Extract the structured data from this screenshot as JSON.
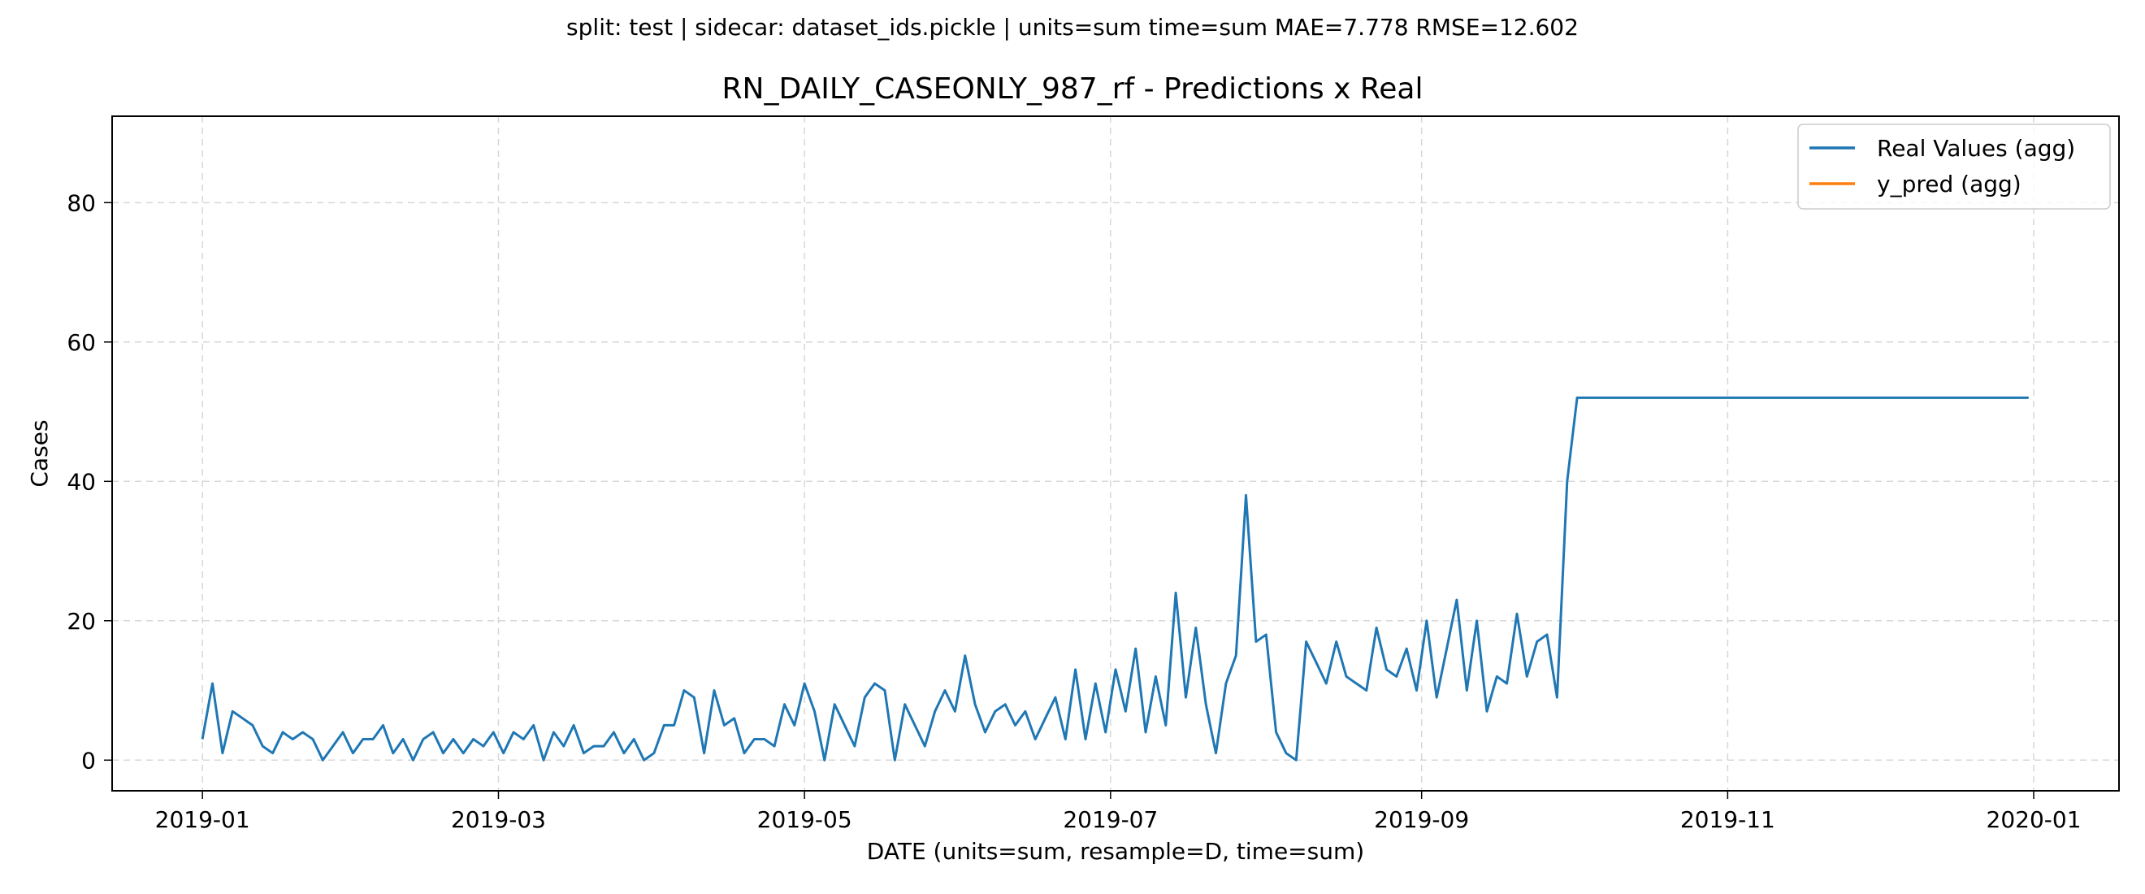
{
  "suptitle": "split: test | sidecar: dataset_ids.pickle | units=sum  time=sum  MAE=7.778  RMSE=12.602",
  "chart_data": {
    "type": "line",
    "title": "RN_DAILY_CASEONLY_987_rf - Predictions x Real",
    "xlabel": "DATE (units=sum, resample=D, time=sum)",
    "ylabel": "Cases",
    "xlim": [
      "2018-12-14",
      "2020-01-18"
    ],
    "ylim": [
      -4.4,
      92.4
    ],
    "x_ticks": [
      "2019-01-01",
      "2019-03-01",
      "2019-05-01",
      "2019-07-01",
      "2019-09-01",
      "2019-11-01",
      "2020-01-01"
    ],
    "x_tick_labels": [
      "2019-01",
      "2019-03",
      "2019-05",
      "2019-07",
      "2019-09",
      "2019-11",
      "2020-01"
    ],
    "y_ticks": [
      0,
      20,
      40,
      60,
      80
    ],
    "y_tick_labels": [
      "0",
      "20",
      "40",
      "60",
      "80"
    ],
    "grid": true,
    "legend_position": "top-right",
    "start_date": "2019-01-01",
    "end_date": "2019-12-31",
    "series": [
      {
        "name": "Real Values (agg)",
        "color": "#1f77b4",
        "keypoints": [
          [
            "2019-01-01",
            3
          ],
          [
            "2019-01-03",
            11
          ],
          [
            "2019-01-05",
            1
          ],
          [
            "2019-01-07",
            7
          ],
          [
            "2019-01-09",
            6
          ],
          [
            "2019-01-11",
            5
          ],
          [
            "2019-01-13",
            2
          ],
          [
            "2019-01-15",
            1
          ],
          [
            "2019-01-17",
            4
          ],
          [
            "2019-01-19",
            3
          ],
          [
            "2019-01-21",
            4
          ],
          [
            "2019-01-23",
            3
          ],
          [
            "2019-01-25",
            0
          ],
          [
            "2019-01-27",
            2
          ],
          [
            "2019-01-29",
            4
          ],
          [
            "2019-01-31",
            1
          ],
          [
            "2019-02-02",
            3
          ],
          [
            "2019-02-04",
            3
          ],
          [
            "2019-02-06",
            5
          ],
          [
            "2019-02-08",
            1
          ],
          [
            "2019-02-10",
            3
          ],
          [
            "2019-02-12",
            0
          ],
          [
            "2019-02-14",
            3
          ],
          [
            "2019-02-16",
            4
          ],
          [
            "2019-02-18",
            1
          ],
          [
            "2019-02-20",
            3
          ],
          [
            "2019-02-22",
            1
          ],
          [
            "2019-02-24",
            3
          ],
          [
            "2019-02-26",
            2
          ],
          [
            "2019-02-28",
            4
          ],
          [
            "2019-03-02",
            1
          ],
          [
            "2019-03-04",
            4
          ],
          [
            "2019-03-06",
            3
          ],
          [
            "2019-03-08",
            5
          ],
          [
            "2019-03-10",
            0
          ],
          [
            "2019-03-12",
            4
          ],
          [
            "2019-03-14",
            2
          ],
          [
            "2019-03-16",
            5
          ],
          [
            "2019-03-18",
            1
          ],
          [
            "2019-03-20",
            2
          ],
          [
            "2019-03-22",
            2
          ],
          [
            "2019-03-24",
            4
          ],
          [
            "2019-03-26",
            1
          ],
          [
            "2019-03-28",
            3
          ],
          [
            "2019-03-30",
            0
          ],
          [
            "2019-04-01",
            1
          ],
          [
            "2019-04-03",
            5
          ],
          [
            "2019-04-05",
            5
          ],
          [
            "2019-04-07",
            10
          ],
          [
            "2019-04-09",
            9
          ],
          [
            "2019-04-11",
            1
          ],
          [
            "2019-04-13",
            10
          ],
          [
            "2019-04-15",
            5
          ],
          [
            "2019-04-17",
            6
          ],
          [
            "2019-04-19",
            1
          ],
          [
            "2019-04-21",
            3
          ],
          [
            "2019-04-23",
            3
          ],
          [
            "2019-04-25",
            2
          ],
          [
            "2019-04-27",
            8
          ],
          [
            "2019-04-29",
            5
          ],
          [
            "2019-05-01",
            11
          ],
          [
            "2019-05-03",
            7
          ],
          [
            "2019-05-05",
            0
          ],
          [
            "2019-05-07",
            8
          ],
          [
            "2019-05-09",
            5
          ],
          [
            "2019-05-11",
            2
          ],
          [
            "2019-05-13",
            9
          ],
          [
            "2019-05-15",
            11
          ],
          [
            "2019-05-17",
            10
          ],
          [
            "2019-05-19",
            0
          ],
          [
            "2019-05-21",
            8
          ],
          [
            "2019-05-23",
            5
          ],
          [
            "2019-05-25",
            2
          ],
          [
            "2019-05-27",
            7
          ],
          [
            "2019-05-29",
            10
          ],
          [
            "2019-05-31",
            7
          ],
          [
            "2019-06-02",
            15
          ],
          [
            "2019-06-04",
            8
          ],
          [
            "2019-06-06",
            4
          ],
          [
            "2019-06-08",
            7
          ],
          [
            "2019-06-10",
            8
          ],
          [
            "2019-06-12",
            5
          ],
          [
            "2019-06-14",
            7
          ],
          [
            "2019-06-16",
            3
          ],
          [
            "2019-06-18",
            6
          ],
          [
            "2019-06-20",
            9
          ],
          [
            "2019-06-22",
            3
          ],
          [
            "2019-06-24",
            13
          ],
          [
            "2019-06-26",
            3
          ],
          [
            "2019-06-28",
            11
          ],
          [
            "2019-06-30",
            4
          ],
          [
            "2019-07-02",
            13
          ],
          [
            "2019-07-04",
            7
          ],
          [
            "2019-07-06",
            16
          ],
          [
            "2019-07-08",
            4
          ],
          [
            "2019-07-10",
            12
          ],
          [
            "2019-07-12",
            5
          ],
          [
            "2019-07-14",
            24
          ],
          [
            "2019-07-16",
            9
          ],
          [
            "2019-07-18",
            19
          ],
          [
            "2019-07-20",
            8
          ],
          [
            "2019-07-22",
            1
          ],
          [
            "2019-07-24",
            11
          ],
          [
            "2019-07-26",
            15
          ],
          [
            "2019-07-28",
            38
          ],
          [
            "2019-07-30",
            17
          ],
          [
            "2019-08-01",
            18
          ],
          [
            "2019-08-03",
            4
          ],
          [
            "2019-08-05",
            1
          ],
          [
            "2019-08-07",
            0
          ],
          [
            "2019-08-09",
            17
          ],
          [
            "2019-08-11",
            14
          ],
          [
            "2019-08-13",
            11
          ],
          [
            "2019-08-15",
            17
          ],
          [
            "2019-08-17",
            12
          ],
          [
            "2019-08-19",
            11
          ],
          [
            "2019-08-21",
            10
          ],
          [
            "2019-08-23",
            19
          ],
          [
            "2019-08-25",
            13
          ],
          [
            "2019-08-27",
            12
          ],
          [
            "2019-08-29",
            16
          ],
          [
            "2019-08-31",
            10
          ],
          [
            "2019-09-02",
            20
          ],
          [
            "2019-09-04",
            9
          ],
          [
            "2019-09-06",
            16
          ],
          [
            "2019-09-08",
            23
          ],
          [
            "2019-09-10",
            10
          ],
          [
            "2019-09-12",
            20
          ],
          [
            "2019-09-14",
            7
          ],
          [
            "2019-09-16",
            12
          ],
          [
            "2019-09-18",
            11
          ],
          [
            "2019-09-20",
            21
          ],
          [
            "2019-09-22",
            12
          ],
          [
            "2019-09-24",
            17
          ],
          [
            "2019-09-26",
            18
          ],
          [
            "2019-09-28",
            9
          ],
          [
            "2019-09-30",
            40
          ],
          [
            "2019-10-02",
            52
          ]
        ]
      },
      {
        "name": "y_pred (agg)",
        "color": "#ff7f0e",
        "keypoints": []
      }
    ]
  }
}
